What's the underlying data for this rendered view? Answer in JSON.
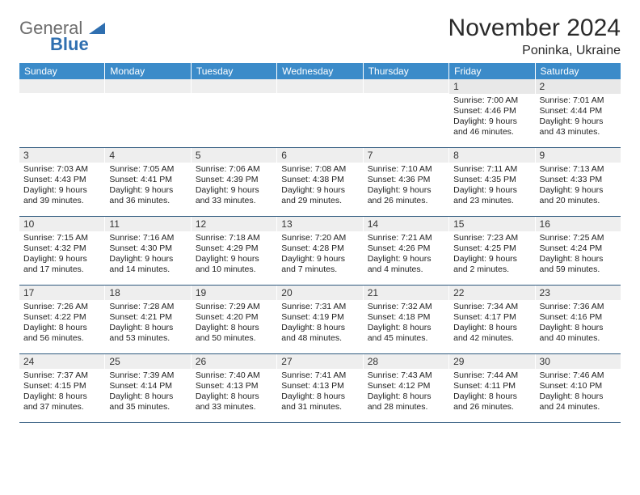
{
  "brand": {
    "word1": "General",
    "word2": "Blue",
    "color_gray": "#6c6c6c",
    "color_blue": "#2f6fb0"
  },
  "header": {
    "month_title": "November 2024",
    "location": "Poninka, Ukraine"
  },
  "colors": {
    "header_bg": "#3b8bc9",
    "header_text": "#ffffff",
    "row_divider": "#305a7f",
    "daynum_bg": "#eeeeee",
    "body_text": "#222222"
  },
  "days_of_week": [
    "Sunday",
    "Monday",
    "Tuesday",
    "Wednesday",
    "Thursday",
    "Friday",
    "Saturday"
  ],
  "weeks": [
    [
      {
        "n": "",
        "sunrise": "",
        "sunset": "",
        "daylight": ""
      },
      {
        "n": "",
        "sunrise": "",
        "sunset": "",
        "daylight": ""
      },
      {
        "n": "",
        "sunrise": "",
        "sunset": "",
        "daylight": ""
      },
      {
        "n": "",
        "sunrise": "",
        "sunset": "",
        "daylight": ""
      },
      {
        "n": "",
        "sunrise": "",
        "sunset": "",
        "daylight": ""
      },
      {
        "n": "1",
        "sunrise": "Sunrise: 7:00 AM",
        "sunset": "Sunset: 4:46 PM",
        "daylight": "Daylight: 9 hours and 46 minutes."
      },
      {
        "n": "2",
        "sunrise": "Sunrise: 7:01 AM",
        "sunset": "Sunset: 4:44 PM",
        "daylight": "Daylight: 9 hours and 43 minutes."
      }
    ],
    [
      {
        "n": "3",
        "sunrise": "Sunrise: 7:03 AM",
        "sunset": "Sunset: 4:43 PM",
        "daylight": "Daylight: 9 hours and 39 minutes."
      },
      {
        "n": "4",
        "sunrise": "Sunrise: 7:05 AM",
        "sunset": "Sunset: 4:41 PM",
        "daylight": "Daylight: 9 hours and 36 minutes."
      },
      {
        "n": "5",
        "sunrise": "Sunrise: 7:06 AM",
        "sunset": "Sunset: 4:39 PM",
        "daylight": "Daylight: 9 hours and 33 minutes."
      },
      {
        "n": "6",
        "sunrise": "Sunrise: 7:08 AM",
        "sunset": "Sunset: 4:38 PM",
        "daylight": "Daylight: 9 hours and 29 minutes."
      },
      {
        "n": "7",
        "sunrise": "Sunrise: 7:10 AM",
        "sunset": "Sunset: 4:36 PM",
        "daylight": "Daylight: 9 hours and 26 minutes."
      },
      {
        "n": "8",
        "sunrise": "Sunrise: 7:11 AM",
        "sunset": "Sunset: 4:35 PM",
        "daylight": "Daylight: 9 hours and 23 minutes."
      },
      {
        "n": "9",
        "sunrise": "Sunrise: 7:13 AM",
        "sunset": "Sunset: 4:33 PM",
        "daylight": "Daylight: 9 hours and 20 minutes."
      }
    ],
    [
      {
        "n": "10",
        "sunrise": "Sunrise: 7:15 AM",
        "sunset": "Sunset: 4:32 PM",
        "daylight": "Daylight: 9 hours and 17 minutes."
      },
      {
        "n": "11",
        "sunrise": "Sunrise: 7:16 AM",
        "sunset": "Sunset: 4:30 PM",
        "daylight": "Daylight: 9 hours and 14 minutes."
      },
      {
        "n": "12",
        "sunrise": "Sunrise: 7:18 AM",
        "sunset": "Sunset: 4:29 PM",
        "daylight": "Daylight: 9 hours and 10 minutes."
      },
      {
        "n": "13",
        "sunrise": "Sunrise: 7:20 AM",
        "sunset": "Sunset: 4:28 PM",
        "daylight": "Daylight: 9 hours and 7 minutes."
      },
      {
        "n": "14",
        "sunrise": "Sunrise: 7:21 AM",
        "sunset": "Sunset: 4:26 PM",
        "daylight": "Daylight: 9 hours and 4 minutes."
      },
      {
        "n": "15",
        "sunrise": "Sunrise: 7:23 AM",
        "sunset": "Sunset: 4:25 PM",
        "daylight": "Daylight: 9 hours and 2 minutes."
      },
      {
        "n": "16",
        "sunrise": "Sunrise: 7:25 AM",
        "sunset": "Sunset: 4:24 PM",
        "daylight": "Daylight: 8 hours and 59 minutes."
      }
    ],
    [
      {
        "n": "17",
        "sunrise": "Sunrise: 7:26 AM",
        "sunset": "Sunset: 4:22 PM",
        "daylight": "Daylight: 8 hours and 56 minutes."
      },
      {
        "n": "18",
        "sunrise": "Sunrise: 7:28 AM",
        "sunset": "Sunset: 4:21 PM",
        "daylight": "Daylight: 8 hours and 53 minutes."
      },
      {
        "n": "19",
        "sunrise": "Sunrise: 7:29 AM",
        "sunset": "Sunset: 4:20 PM",
        "daylight": "Daylight: 8 hours and 50 minutes."
      },
      {
        "n": "20",
        "sunrise": "Sunrise: 7:31 AM",
        "sunset": "Sunset: 4:19 PM",
        "daylight": "Daylight: 8 hours and 48 minutes."
      },
      {
        "n": "21",
        "sunrise": "Sunrise: 7:32 AM",
        "sunset": "Sunset: 4:18 PM",
        "daylight": "Daylight: 8 hours and 45 minutes."
      },
      {
        "n": "22",
        "sunrise": "Sunrise: 7:34 AM",
        "sunset": "Sunset: 4:17 PM",
        "daylight": "Daylight: 8 hours and 42 minutes."
      },
      {
        "n": "23",
        "sunrise": "Sunrise: 7:36 AM",
        "sunset": "Sunset: 4:16 PM",
        "daylight": "Daylight: 8 hours and 40 minutes."
      }
    ],
    [
      {
        "n": "24",
        "sunrise": "Sunrise: 7:37 AM",
        "sunset": "Sunset: 4:15 PM",
        "daylight": "Daylight: 8 hours and 37 minutes."
      },
      {
        "n": "25",
        "sunrise": "Sunrise: 7:39 AM",
        "sunset": "Sunset: 4:14 PM",
        "daylight": "Daylight: 8 hours and 35 minutes."
      },
      {
        "n": "26",
        "sunrise": "Sunrise: 7:40 AM",
        "sunset": "Sunset: 4:13 PM",
        "daylight": "Daylight: 8 hours and 33 minutes."
      },
      {
        "n": "27",
        "sunrise": "Sunrise: 7:41 AM",
        "sunset": "Sunset: 4:13 PM",
        "daylight": "Daylight: 8 hours and 31 minutes."
      },
      {
        "n": "28",
        "sunrise": "Sunrise: 7:43 AM",
        "sunset": "Sunset: 4:12 PM",
        "daylight": "Daylight: 8 hours and 28 minutes."
      },
      {
        "n": "29",
        "sunrise": "Sunrise: 7:44 AM",
        "sunset": "Sunset: 4:11 PM",
        "daylight": "Daylight: 8 hours and 26 minutes."
      },
      {
        "n": "30",
        "sunrise": "Sunrise: 7:46 AM",
        "sunset": "Sunset: 4:10 PM",
        "daylight": "Daylight: 8 hours and 24 minutes."
      }
    ]
  ]
}
